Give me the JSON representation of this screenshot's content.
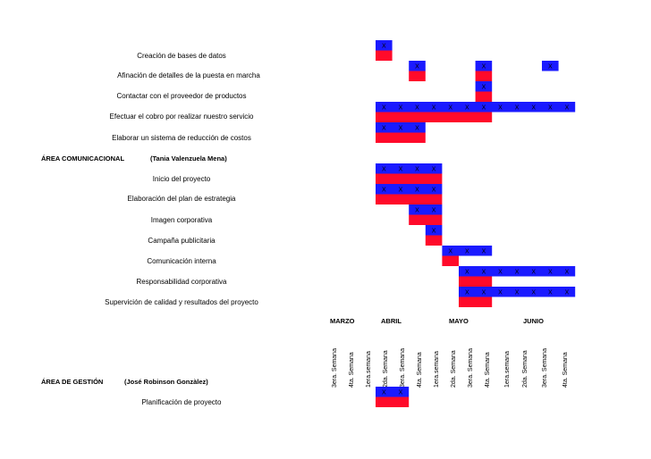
{
  "chart_data": {
    "type": "gantt",
    "x_groups": [
      {
        "month": "MARZO",
        "weeks": [
          "3era. Semana",
          "4ta. Semana"
        ]
      },
      {
        "month": "ABRIL",
        "weeks": [
          "1era.semana",
          "2da. Semana",
          "3era. Semana",
          "4ta. Semana"
        ]
      },
      {
        "month": "MAYO",
        "weeks": [
          "1era.semana",
          "2da. Semana",
          "3era. Semana",
          "4ta. Semana"
        ]
      },
      {
        "month": "JUNIO",
        "weeks": [
          "1era.semana",
          "2da. Semana",
          "3era. Semana",
          "4ta. Semana"
        ]
      }
    ],
    "weeks": [
      "3era. Semana",
      "4ta. Semana",
      "1era.semana",
      "2da. Semana",
      "3era. Semana",
      "4ta. Semana",
      "1era.semana",
      "2da. Semana",
      "3era. Semana",
      "4ta. Semana",
      "1era.semana",
      "2da. Semana",
      "3era. Semana",
      "4ta. Semana"
    ],
    "months": [
      "MARZO",
      "ABRIL",
      "MAYO",
      "JUNIO"
    ],
    "mark": "X",
    "colors": {
      "planned": "#1a1aff",
      "actual": "#ff0a2a",
      "mark": "#000000"
    },
    "sections": [
      {
        "area": "",
        "lead": "",
        "tasks": [
          {
            "name": "Creación de bases de datos",
            "planned": [
              0
            ],
            "actual": [
              0
            ]
          },
          {
            "name": "Afinación de detalles de la puesta en marcha",
            "planned": [
              2,
              6,
              10
            ],
            "actual": [
              2,
              6
            ]
          },
          {
            "name": "Contactar con el proveedor de productos",
            "planned": [
              6
            ],
            "actual": [
              6
            ]
          },
          {
            "name": "Efectuar el cobro por realizar nuestro servicio",
            "planned": [
              0,
              1,
              2,
              3,
              4,
              5,
              6,
              7,
              8,
              9,
              10,
              11
            ],
            "actual": [
              0,
              1,
              2,
              3,
              4,
              5,
              6
            ]
          },
          {
            "name": "Elaborar un sistema de reducción de costos",
            "planned": [
              0,
              1,
              2
            ],
            "actual": [
              0,
              1,
              2
            ]
          }
        ]
      },
      {
        "area": "ÁREA COMUNICACIONAL",
        "lead": "(Tania Valenzuela Mena)",
        "tasks": [
          {
            "name": "Inicio del proyecto",
            "planned": [
              0,
              1,
              2,
              3
            ],
            "actual": [
              0,
              1,
              2,
              3
            ]
          },
          {
            "name": "Elaboración del plan de estrategia",
            "planned": [
              0,
              1,
              2,
              3
            ],
            "actual": [
              0,
              1,
              2,
              3
            ]
          },
          {
            "name": "Imagen corporativa",
            "planned": [
              2,
              3
            ],
            "actual": [
              2,
              3
            ]
          },
          {
            "name": "Campaña publicitaria",
            "planned": [
              3
            ],
            "actual": [
              3
            ]
          },
          {
            "name": "Comunicación interna",
            "planned": [
              4,
              5,
              6
            ],
            "actual": [
              4
            ]
          },
          {
            "name": "Responsabilidad corporativa",
            "planned": [
              5,
              6,
              7,
              8,
              9,
              10,
              11
            ],
            "actual": [
              5,
              6
            ]
          },
          {
            "name": "Supervición de calidad y resultados del proyecto",
            "planned": [
              5,
              6,
              7,
              8,
              9,
              10,
              11
            ],
            "actual": [
              5,
              6
            ]
          }
        ]
      },
      {
        "area": "ÁREA DE GESTIÓN",
        "lead": "(José Robinson Gonzàlez)",
        "tasks": [
          {
            "name": "Planificación de proyecto",
            "planned": [
              0,
              1
            ],
            "actual": [
              0,
              1
            ]
          }
        ]
      }
    ]
  }
}
